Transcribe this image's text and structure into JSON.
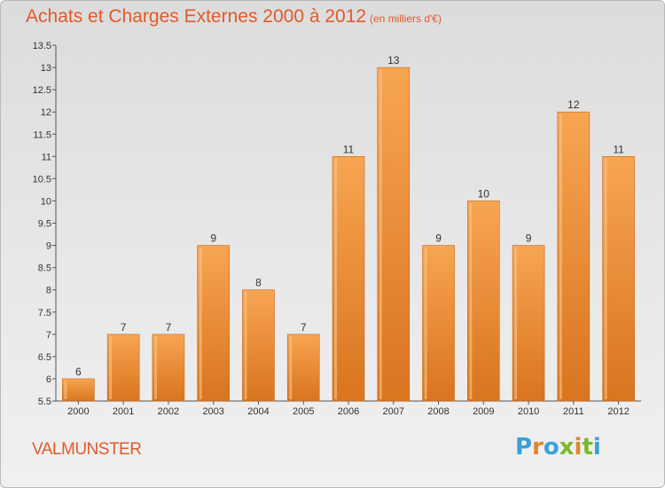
{
  "chart_data": {
    "type": "bar",
    "title": "Achats et Charges Externes 2000 à 2012",
    "subtitle": "(en milliers d'€)",
    "categories": [
      "2000",
      "2001",
      "2002",
      "2003",
      "2004",
      "2005",
      "2006",
      "2007",
      "2008",
      "2009",
      "2010",
      "2011",
      "2012"
    ],
    "values": [
      6,
      7,
      7,
      9,
      8,
      7,
      11,
      13,
      9,
      10,
      9,
      12,
      11
    ],
    "ylim": [
      5.5,
      13.5
    ],
    "yticks": [
      "5.5",
      "6",
      "6.5",
      "7",
      "7.5",
      "8",
      "8.5",
      "9",
      "9.5",
      "10",
      "10.5",
      "11",
      "11.5",
      "12",
      "12.5",
      "13",
      "13.5"
    ],
    "grid": false,
    "bar_color": "#f0953c"
  },
  "footer": {
    "city": "VALMUNSTER",
    "logo_letters": [
      "P",
      "r",
      "o",
      "x",
      "i",
      "t",
      "i"
    ],
    "logo_colors": [
      "#3aa0d8",
      "#e0862a",
      "#3aa0d8",
      "#7ab82e",
      "#e0862a",
      "#7ab82e",
      "#3aa0d8"
    ]
  }
}
